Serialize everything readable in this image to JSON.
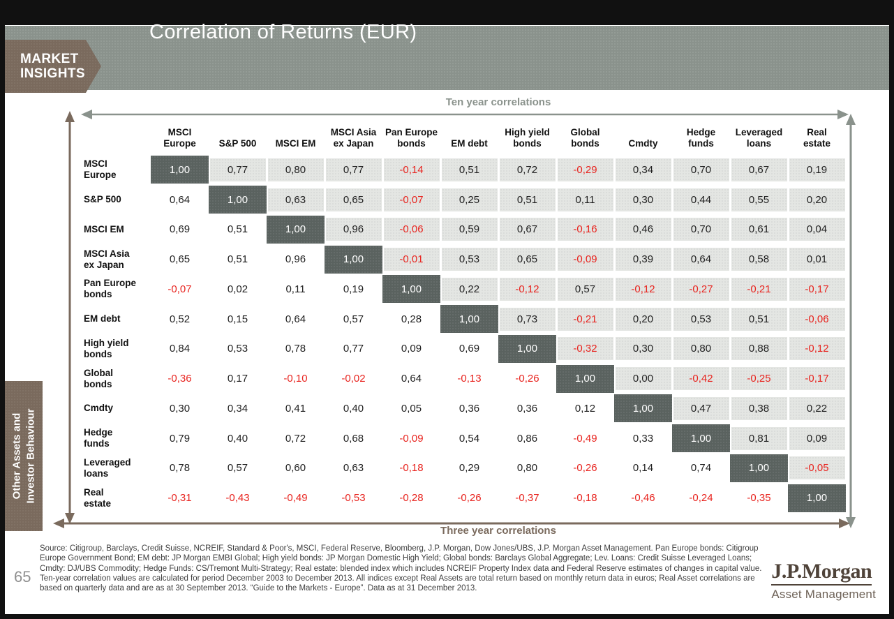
{
  "header": {
    "brand_line1": "MARKET",
    "brand_line2": "INSIGHTS",
    "title": "Correlation of Returns (EUR)"
  },
  "sidebar": {
    "label_line1": "Other Assets and",
    "label_line2": "Investor Behaviour"
  },
  "chart_data": {
    "type": "heatmap",
    "title": "Correlation of Returns (EUR)",
    "upper_triangle_label": "Ten year correlations",
    "lower_triangle_label": "Three year correlations",
    "decimal_separator": ",",
    "labels": [
      "MSCI\nEurope",
      "S&P 500",
      "MSCI EM",
      "MSCI Asia\nex Japan",
      "Pan Europe\nbonds",
      "EM debt",
      "High yield\nbonds",
      "Global\nbonds",
      "Cmdty",
      "Hedge\nfunds",
      "Leveraged\nloans",
      "Real\nestate"
    ],
    "matrix": [
      [
        "1,00",
        "0,77",
        "0,80",
        "0,77",
        "-0,14",
        "0,51",
        "0,72",
        "-0,29",
        "0,34",
        "0,70",
        "0,67",
        "0,19"
      ],
      [
        "0,64",
        "1,00",
        "0,63",
        "0,65",
        "-0,07",
        "0,25",
        "0,51",
        "0,11",
        "0,30",
        "0,44",
        "0,55",
        "0,20"
      ],
      [
        "0,69",
        "0,51",
        "1,00",
        "0,96",
        "-0,06",
        "0,59",
        "0,67",
        "-0,16",
        "0,46",
        "0,70",
        "0,61",
        "0,04"
      ],
      [
        "0,65",
        "0,51",
        "0,96",
        "1,00",
        "-0,01",
        "0,53",
        "0,65",
        "-0,09",
        "0,39",
        "0,64",
        "0,58",
        "0,01"
      ],
      [
        "-0,07",
        "0,02",
        "0,11",
        "0,19",
        "1,00",
        "0,22",
        "-0,12",
        "0,57",
        "-0,12",
        "-0,27",
        "-0,21",
        "-0,17"
      ],
      [
        "0,52",
        "0,15",
        "0,64",
        "0,57",
        "0,28",
        "1,00",
        "0,73",
        "-0,21",
        "0,20",
        "0,53",
        "0,51",
        "-0,06"
      ],
      [
        "0,84",
        "0,53",
        "0,78",
        "0,77",
        "0,09",
        "0,69",
        "1,00",
        "-0,32",
        "0,30",
        "0,80",
        "0,88",
        "-0,12"
      ],
      [
        "-0,36",
        "0,17",
        "-0,10",
        "-0,02",
        "0,64",
        "-0,13",
        "-0,26",
        "1,00",
        "0,00",
        "-0,42",
        "-0,25",
        "-0,17"
      ],
      [
        "0,30",
        "0,34",
        "0,41",
        "0,40",
        "0,05",
        "0,36",
        "0,36",
        "0,12",
        "1,00",
        "0,47",
        "0,38",
        "0,22"
      ],
      [
        "0,79",
        "0,40",
        "0,72",
        "0,68",
        "-0,09",
        "0,54",
        "0,86",
        "-0,49",
        "0,33",
        "1,00",
        "0,81",
        "0,09"
      ],
      [
        "0,78",
        "0,57",
        "0,60",
        "0,63",
        "-0,18",
        "0,29",
        "0,80",
        "-0,26",
        "0,14",
        "0,74",
        "1,00",
        "-0,05"
      ],
      [
        "-0,31",
        "-0,43",
        "-0,49",
        "-0,53",
        "-0,28",
        "-0,26",
        "-0,37",
        "-0,18",
        "-0,46",
        "-0,24",
        "-0,35",
        "1,00"
      ]
    ]
  },
  "footer": {
    "page_number": "65",
    "lines": [
      "Source: Citigroup, Barclays, Credit Suisse, NCREIF, Standard & Poor's, MSCI, Federal Reserve, Bloomberg, J.P. Morgan, Dow Jones/UBS, J.P. Morgan Asset Management. Pan Europe bonds: Citigroup",
      "Europe Government Bond; EM debt: JP Morgan EMBI Global; High yield bonds: JP Morgan Domestic High Yield; Global bonds: Barclays Global Aggregate; Lev. Loans: Credit Suisse Leveraged Loans;",
      "Cmdty: DJ/UBS Commodity; Hedge Funds: CS/Tremont Multi-Strategy; Real estate: blended index which includes NCREIF Property Index data and Federal Reserve estimates of changes in capital value.",
      "Ten-year correlation values are calculated for period December 2003 to December 2013. All indices except Real Assets are total return based on monthly return data in euros; Real Asset correlations are",
      "based on quarterly data and are as at 30 September 2013. “Guide to the Markets - Europe”. Data as at 31 December 2013."
    ],
    "logo_wordmark": "J.P.Morgan",
    "logo_subtitle": "Asset Management"
  },
  "colors": {
    "brand_brown": "#7a6a5d",
    "banner_gray_green": "#8a928c",
    "diagonal_cell": "#5a625f",
    "ten_year_cell_bg": "#e4e6e3",
    "negative_value_red": "#e8241f"
  }
}
